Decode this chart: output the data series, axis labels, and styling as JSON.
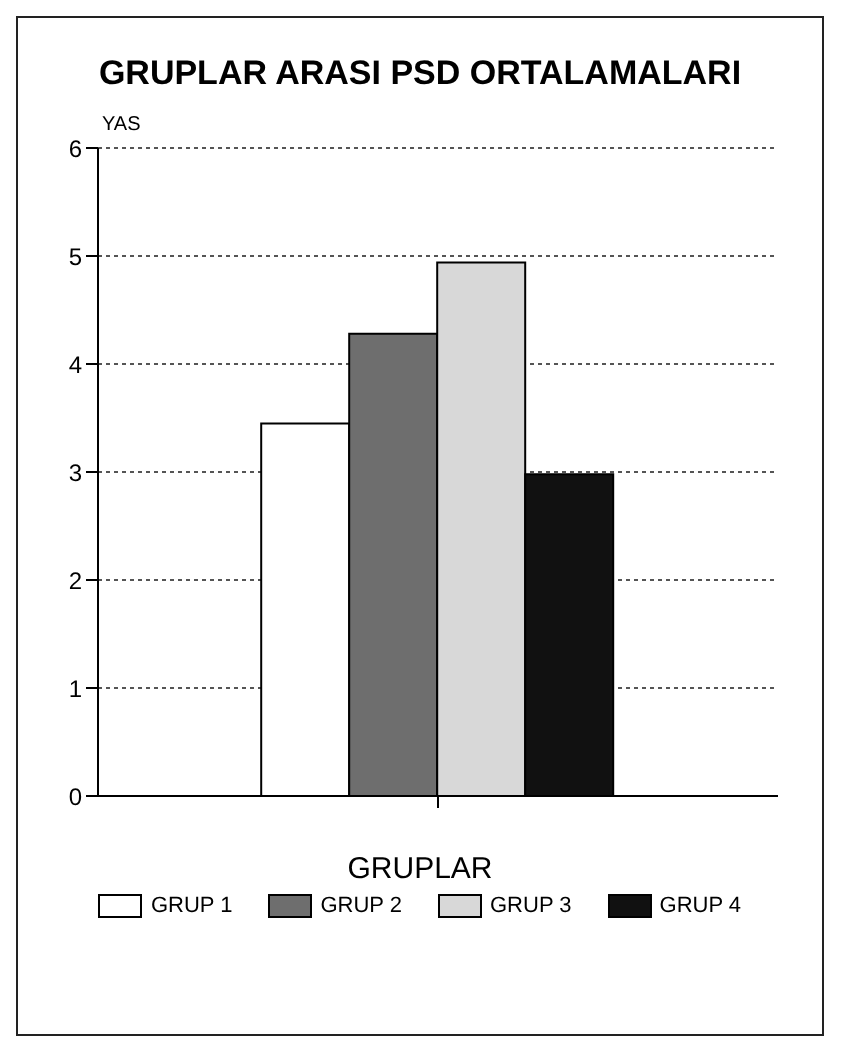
{
  "chart_data": {
    "type": "bar",
    "title": "GRUPLAR ARASI PSD ORTALAMALARI",
    "xlabel": "GRUPLAR",
    "ylabel": "YAS",
    "categories": [
      null
    ],
    "series": [
      {
        "name": "GRUP 1",
        "color": "#ffffff",
        "values": [
          3.45
        ]
      },
      {
        "name": "GRUP 2",
        "color": "#6e6e6e",
        "values": [
          4.28
        ]
      },
      {
        "name": "GRUP 3",
        "color": "#d8d8d8",
        "values": [
          4.94
        ]
      },
      {
        "name": "GRUP 4",
        "color": "#111111",
        "values": [
          2.98
        ]
      }
    ],
    "ylim": [
      0,
      6
    ],
    "yticks": [
      0,
      1,
      2,
      3,
      4,
      5,
      6
    ],
    "grid": "y",
    "legend": "bottom"
  }
}
